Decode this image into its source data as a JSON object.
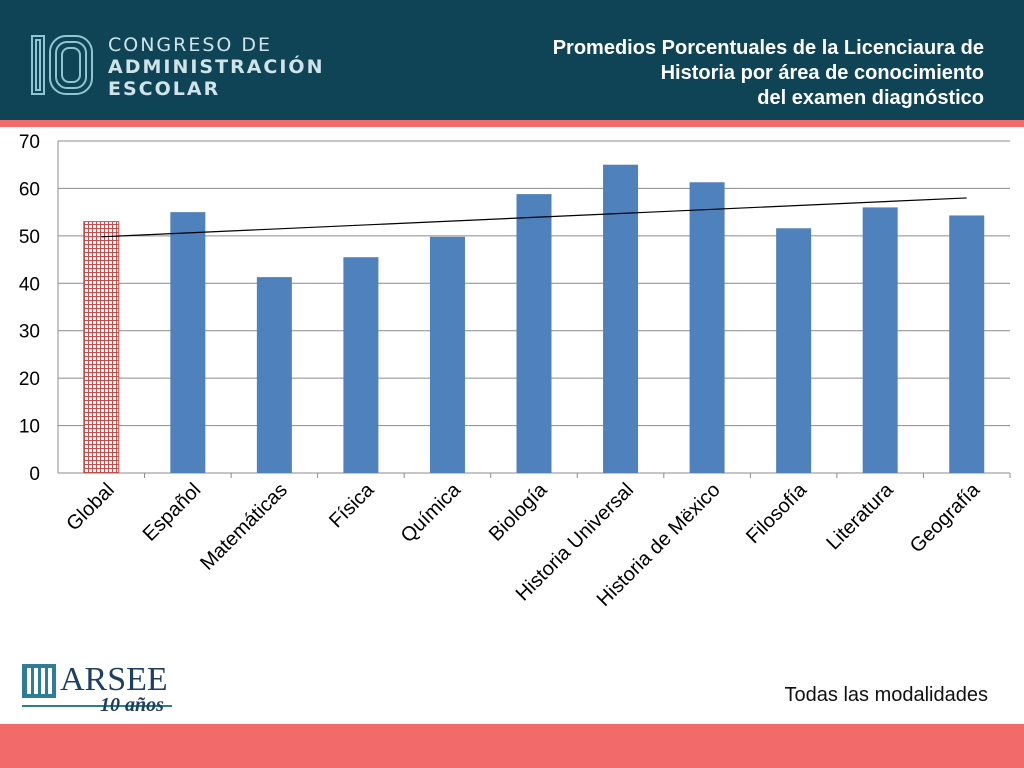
{
  "header": {
    "logo": {
      "numeral": "10",
      "line1": "CONGRESO DE",
      "line2": "ADMINISTRACIÓN",
      "line3": "ESCOLAR"
    },
    "title_lines": [
      "Promedios Porcentuales de la Licenciaura de",
      "Historia por área de conocimiento",
      "del examen diagnóstico"
    ]
  },
  "footer": {
    "arsee_logo": {
      "word": "ARSEE",
      "subtitle": "10 años"
    },
    "note": "Todas las modalidades"
  },
  "colors": {
    "header_bg": "#0f4457",
    "accent_coral": "#f36a6a",
    "bar_blue": "#4f81bd",
    "global_bar_red": "#c0504d",
    "trendline": "#000000"
  },
  "chart_data": {
    "type": "bar",
    "categories": [
      "Global",
      "Español",
      "Matemáticas",
      "Física",
      "Química",
      "Biología",
      "Historia Universal",
      "Historia de Mëxico",
      "Filosofía",
      "Literatura",
      "Geografía"
    ],
    "values": [
      53,
      55,
      41.3,
      45.5,
      49.8,
      58.8,
      65,
      61.3,
      51.6,
      56,
      54.3
    ],
    "highlight_category": "Global",
    "highlight_pattern": "red grid",
    "y_ticks": [
      0,
      10,
      20,
      30,
      40,
      50,
      60,
      70
    ],
    "ylim": [
      0,
      70
    ],
    "grid": true,
    "legend": "none",
    "trendline": {
      "type": "linear",
      "from": 49.8,
      "to": 58
    }
  }
}
